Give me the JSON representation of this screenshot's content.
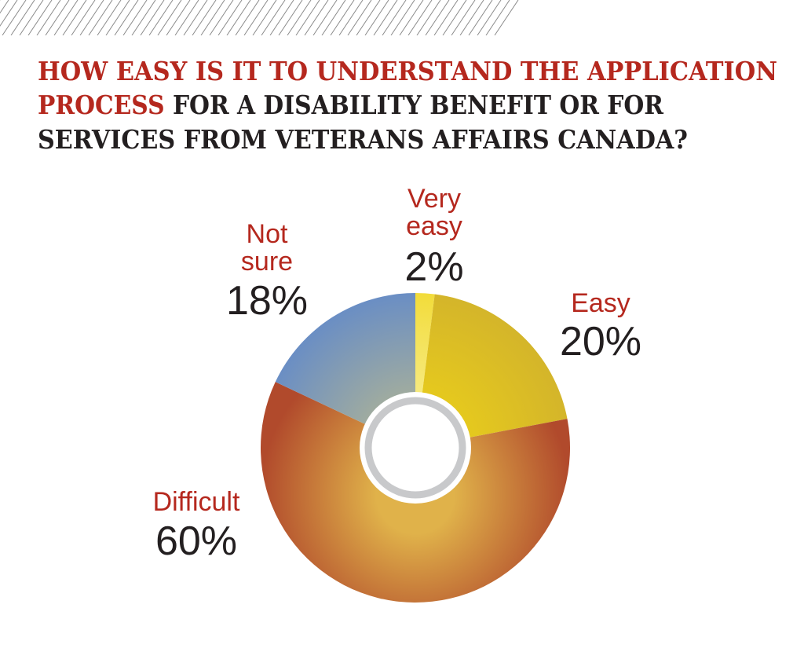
{
  "colors": {
    "accent": "#b5281e",
    "text": "#231f20"
  },
  "chart_data": {
    "type": "pie",
    "variant": "donut",
    "title_parts": [
      {
        "text": "HOW EASY IS IT TO UNDERSTAND THE APPLICATION",
        "color": "#b5281e"
      },
      {
        "text": "PROCESS",
        "color": "#b5281e"
      },
      {
        "text": "FOR A DISABILITY BENEFIT OR FOR",
        "color": "#231f20"
      },
      {
        "text": "SERVICES FROM VETERANS AFFAIRS CANADA?",
        "color": "#231f20"
      }
    ],
    "slices": [
      {
        "label": "Very easy",
        "label_lines": [
          "Very",
          "easy"
        ],
        "value": 2,
        "display": "2%",
        "colors": [
          "#f7ec8a",
          "#f2dc3a"
        ]
      },
      {
        "label": "Easy",
        "label_lines": [
          "Easy"
        ],
        "value": 20,
        "display": "20%",
        "colors": [
          "#e8cc1c",
          "#d4b52a"
        ]
      },
      {
        "label": "Difficult",
        "label_lines": [
          "Difficult"
        ],
        "value": 60,
        "display": "60%",
        "colors": [
          "#e0b24a",
          "#b14a2c"
        ]
      },
      {
        "label": "Not sure",
        "label_lines": [
          "Not",
          "sure"
        ],
        "value": 18,
        "display": "18%",
        "colors": [
          "#a8b09a",
          "#6a8ec4"
        ]
      }
    ],
    "start": "top",
    "direction": "clockwise"
  }
}
